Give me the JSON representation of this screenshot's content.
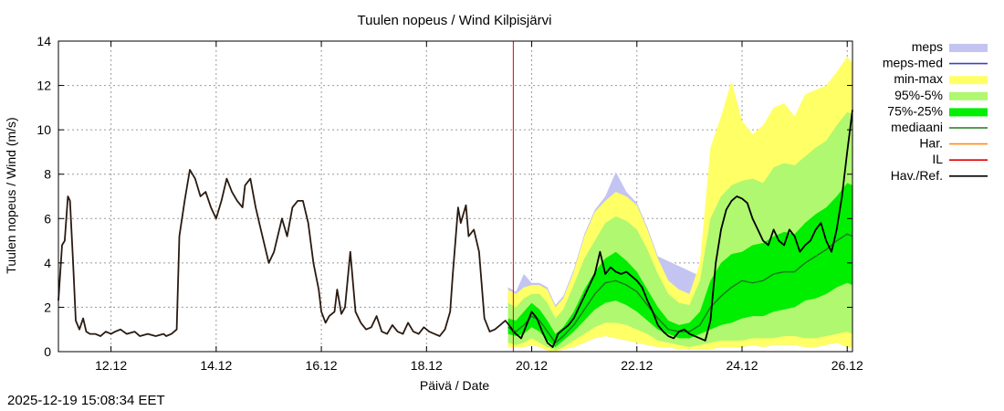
{
  "chart_data": {
    "type": "line",
    "title": "Tuulen nopeus / Wind  Kilpisjärvi",
    "xlabel": "Päivä / Date",
    "ylabel": "Tuulen nopeus / Wind (m/s)",
    "xlim": [
      11,
      26.1
    ],
    "ylim": [
      0,
      14
    ],
    "grid": true,
    "yticks": [
      0,
      2,
      4,
      6,
      8,
      10,
      12,
      14
    ],
    "xticks": [
      {
        "value": 12,
        "label": "12.12"
      },
      {
        "value": 14,
        "label": "14.12"
      },
      {
        "value": 16,
        "label": "16.12"
      },
      {
        "value": 18,
        "label": "18.12"
      },
      {
        "value": 20,
        "label": "20.12"
      },
      {
        "value": 22,
        "label": "22.12"
      },
      {
        "value": 24,
        "label": "24.12"
      },
      {
        "value": 26,
        "label": "26.12"
      }
    ],
    "forecast_start": 19.65,
    "legend": [
      {
        "label": "meps",
        "color": "#c4c4f2",
        "kind": "box"
      },
      {
        "label": "meps-med",
        "color": "#4040c0",
        "kind": "line"
      },
      {
        "label": "min-max",
        "color": "#ffff66",
        "kind": "box"
      },
      {
        "label": "95%-5%",
        "color": "#b0f870",
        "kind": "box"
      },
      {
        "label": "75%-25%",
        "color": "#00ee00",
        "kind": "box"
      },
      {
        "label": "mediaani",
        "color": "#1e7a1e",
        "kind": "line"
      },
      {
        "label": "Har.",
        "color": "#ff8c1a",
        "kind": "line"
      },
      {
        "label": "IL",
        "color": "#e00000",
        "kind": "line"
      },
      {
        "label": "Hav./Ref.",
        "color": "#000000",
        "kind": "line"
      }
    ],
    "series": [
      {
        "name": "Hav./Ref.",
        "x": [
          11.0,
          11.07,
          11.12,
          11.18,
          11.22,
          11.28,
          11.33,
          11.4,
          11.47,
          11.53,
          11.6,
          11.7,
          11.8,
          11.9,
          12.0,
          12.08,
          12.18,
          12.3,
          12.45,
          12.55,
          12.7,
          12.85,
          13.0,
          13.05,
          13.15,
          13.25,
          13.3,
          13.4,
          13.5,
          13.6,
          13.7,
          13.8,
          13.9,
          14.0,
          14.1,
          14.2,
          14.3,
          14.4,
          14.5,
          14.55,
          14.65,
          14.75,
          14.85,
          15.0,
          15.1,
          15.2,
          15.25,
          15.35,
          15.45,
          15.55,
          15.65,
          15.75,
          15.85,
          15.95,
          16.0,
          16.08,
          16.15,
          16.25,
          16.3,
          16.38,
          16.45,
          16.55,
          16.65,
          16.75,
          16.85,
          16.95,
          17.05,
          17.15,
          17.25,
          17.35,
          17.45,
          17.55,
          17.65,
          17.75,
          17.85,
          17.95,
          18.05,
          18.15,
          18.25,
          18.35,
          18.45,
          18.5,
          18.6,
          18.65,
          18.75,
          18.8,
          18.9,
          19.0,
          19.1,
          19.2,
          19.3,
          19.4,
          19.5,
          19.6,
          19.65,
          19.7,
          19.8,
          19.9,
          20.0,
          20.1,
          20.2,
          20.3,
          20.4,
          20.5,
          20.6,
          20.7,
          20.8,
          20.9,
          21.0,
          21.1,
          21.2,
          21.3,
          21.4,
          21.5,
          21.6,
          21.7,
          21.8,
          21.9,
          22.0,
          22.1,
          22.2,
          22.3,
          22.4,
          22.5,
          22.6,
          22.7,
          22.8,
          22.9,
          23.0,
          23.1,
          23.2,
          23.3,
          23.4,
          23.5,
          23.6,
          23.7,
          23.8,
          23.9,
          24.0,
          24.1,
          24.2,
          24.3,
          24.4,
          24.5,
          24.6,
          24.7,
          24.8,
          24.9,
          25.0,
          25.1,
          25.2,
          25.3,
          25.4,
          25.5,
          25.6,
          25.7,
          25.8,
          25.9,
          26.0,
          26.1
        ],
        "y": [
          2.3,
          4.8,
          5.0,
          7.0,
          6.8,
          4.0,
          1.4,
          1.0,
          1.5,
          0.9,
          0.8,
          0.8,
          0.7,
          0.9,
          0.8,
          0.9,
          1.0,
          0.8,
          0.9,
          0.7,
          0.8,
          0.7,
          0.8,
          0.7,
          0.8,
          1.0,
          5.2,
          6.8,
          8.2,
          7.8,
          7.0,
          7.2,
          6.5,
          6.0,
          6.8,
          7.8,
          7.2,
          6.8,
          6.5,
          7.5,
          7.8,
          6.5,
          5.5,
          4.0,
          4.5,
          5.5,
          6.0,
          5.2,
          6.5,
          6.8,
          6.8,
          5.8,
          4.0,
          2.8,
          1.8,
          1.3,
          1.6,
          1.8,
          2.8,
          1.7,
          2.0,
          4.5,
          1.8,
          1.3,
          1.0,
          1.1,
          1.6,
          0.9,
          0.8,
          1.2,
          0.9,
          0.8,
          1.3,
          0.9,
          0.8,
          1.1,
          0.9,
          0.8,
          0.7,
          1.0,
          1.8,
          3.5,
          6.5,
          5.8,
          6.6,
          5.2,
          5.5,
          4.5,
          1.5,
          0.9,
          1.0,
          1.2,
          1.4,
          1.1,
          0.9,
          0.8,
          0.6,
          1.2,
          1.8,
          1.5,
          0.9,
          0.4,
          0.2,
          0.8,
          1.0,
          1.2,
          1.5,
          2.0,
          2.5,
          3.0,
          3.5,
          4.5,
          3.5,
          3.8,
          3.6,
          3.5,
          3.6,
          3.4,
          3.2,
          2.9,
          2.3,
          1.8,
          1.2,
          0.9,
          0.7,
          0.6,
          0.9,
          1.0,
          0.8,
          0.7,
          0.6,
          0.5,
          1.4,
          4.0,
          5.5,
          6.4,
          6.8,
          7.0,
          6.9,
          6.7,
          6.0,
          5.5,
          5.0,
          4.8,
          5.5,
          5.0,
          4.8,
          5.5,
          5.2,
          4.5,
          4.8,
          5.0,
          5.5,
          5.8,
          5.0,
          4.5,
          5.5,
          7.0,
          9.0,
          10.9
        ]
      },
      {
        "name": "mediaani",
        "x": [
          19.55,
          19.7,
          19.85,
          20.0,
          20.15,
          20.3,
          20.45,
          20.6,
          20.8,
          21.0,
          21.2,
          21.4,
          21.6,
          21.8,
          22.0,
          22.2,
          22.4,
          22.6,
          22.8,
          23.0,
          23.2,
          23.4,
          23.6,
          23.8,
          24.0,
          24.2,
          24.4,
          24.6,
          24.8,
          25.0,
          25.2,
          25.4,
          25.6,
          25.8,
          26.0,
          26.1
        ],
        "y": [
          1.1,
          0.9,
          1.2,
          1.6,
          1.4,
          0.9,
          0.4,
          0.7,
          1.2,
          1.9,
          2.6,
          3.1,
          3.2,
          3.0,
          2.7,
          2.1,
          1.5,
          1.0,
          0.9,
          0.9,
          1.2,
          2.0,
          2.5,
          2.9,
          3.2,
          3.1,
          3.2,
          3.5,
          3.6,
          3.6,
          4.0,
          4.3,
          4.6,
          5.0,
          5.3,
          5.2
        ]
      },
      {
        "name": "q25",
        "x": [
          19.55,
          19.7,
          19.85,
          20.0,
          20.15,
          20.3,
          20.45,
          20.6,
          20.8,
          21.0,
          21.2,
          21.4,
          21.6,
          21.8,
          22.0,
          22.2,
          22.4,
          22.6,
          22.8,
          23.0,
          23.2,
          23.4,
          23.6,
          23.8,
          24.0,
          24.2,
          24.4,
          24.6,
          24.8,
          25.0,
          25.2,
          25.4,
          25.6,
          25.8,
          26.0,
          26.1
        ],
        "y": [
          0.8,
          0.7,
          0.8,
          1.1,
          0.9,
          0.5,
          0.2,
          0.5,
          0.9,
          1.4,
          1.9,
          2.2,
          2.3,
          2.1,
          1.8,
          1.4,
          1.0,
          0.8,
          0.6,
          0.6,
          0.8,
          1.0,
          1.2,
          1.3,
          1.5,
          1.6,
          1.6,
          1.8,
          1.9,
          2.0,
          2.3,
          2.4,
          2.6,
          2.9,
          3.1,
          3.0
        ]
      },
      {
        "name": "q75",
        "x": [
          19.55,
          19.7,
          19.85,
          20.0,
          20.15,
          20.3,
          20.45,
          20.6,
          20.8,
          21.0,
          21.2,
          21.4,
          21.6,
          21.8,
          22.0,
          22.2,
          22.4,
          22.6,
          22.8,
          23.0,
          23.2,
          23.4,
          23.6,
          23.8,
          24.0,
          24.2,
          24.4,
          24.6,
          24.8,
          25.0,
          25.2,
          25.4,
          25.6,
          25.8,
          26.0,
          26.1
        ],
        "y": [
          1.5,
          1.4,
          1.8,
          2.2,
          1.9,
          1.4,
          0.8,
          1.1,
          1.8,
          2.8,
          3.6,
          4.2,
          4.5,
          4.1,
          3.6,
          2.8,
          2.0,
          1.4,
          1.2,
          1.3,
          1.8,
          3.2,
          4.0,
          4.4,
          4.5,
          4.8,
          4.9,
          5.2,
          5.4,
          5.3,
          5.8,
          6.2,
          6.5,
          7.0,
          7.6,
          7.5
        ]
      },
      {
        "name": "q5",
        "x": [
          19.55,
          19.7,
          19.85,
          20.0,
          20.15,
          20.3,
          20.45,
          20.6,
          20.8,
          21.0,
          21.2,
          21.4,
          21.6,
          21.8,
          22.0,
          22.2,
          22.4,
          22.6,
          22.8,
          23.0,
          23.2,
          23.4,
          23.6,
          23.8,
          24.0,
          24.2,
          24.4,
          24.6,
          24.8,
          25.0,
          25.2,
          25.4,
          25.6,
          25.8,
          26.0,
          26.1
        ],
        "y": [
          0.4,
          0.3,
          0.4,
          0.6,
          0.4,
          0.2,
          0.05,
          0.2,
          0.5,
          0.8,
          1.1,
          1.3,
          1.3,
          1.2,
          1.0,
          0.8,
          0.5,
          0.4,
          0.3,
          0.2,
          0.3,
          0.4,
          0.5,
          0.5,
          0.5,
          0.6,
          0.6,
          0.6,
          0.7,
          0.7,
          0.6,
          0.6,
          0.7,
          0.8,
          0.9,
          0.8
        ]
      },
      {
        "name": "q95",
        "x": [
          19.55,
          19.7,
          19.85,
          20.0,
          20.15,
          20.3,
          20.45,
          20.6,
          20.8,
          21.0,
          21.2,
          21.4,
          21.6,
          21.8,
          22.0,
          22.2,
          22.4,
          22.6,
          22.8,
          23.0,
          23.2,
          23.4,
          23.6,
          23.8,
          24.0,
          24.2,
          24.4,
          24.6,
          24.8,
          25.0,
          25.2,
          25.4,
          25.6,
          25.8,
          26.0,
          26.1
        ],
        "y": [
          2.2,
          2.0,
          2.4,
          2.6,
          2.6,
          2.2,
          1.5,
          1.9,
          3.0,
          4.2,
          5.0,
          5.8,
          6.1,
          5.9,
          5.5,
          4.6,
          3.5,
          2.6,
          2.2,
          2.1,
          3.2,
          6.0,
          7.0,
          7.5,
          7.7,
          7.8,
          7.6,
          8.3,
          8.5,
          8.4,
          8.8,
          9.2,
          9.5,
          10.2,
          10.8,
          10.7
        ]
      },
      {
        "name": "min",
        "x": [
          19.55,
          19.7,
          19.85,
          20.0,
          20.15,
          20.3,
          20.45,
          20.6,
          20.8,
          21.0,
          21.2,
          21.4,
          21.6,
          21.8,
          22.0,
          22.2,
          22.4,
          22.6,
          22.8,
          23.0,
          23.2,
          23.4,
          23.6,
          23.8,
          24.0,
          24.2,
          24.4,
          24.6,
          24.8,
          25.0,
          25.2,
          25.4,
          25.6,
          25.8,
          26.0,
          26.1
        ],
        "y": [
          0.2,
          0.2,
          0.2,
          0.3,
          0.2,
          0.05,
          0.0,
          0.1,
          0.2,
          0.4,
          0.6,
          0.7,
          0.6,
          0.5,
          0.4,
          0.3,
          0.2,
          0.2,
          0.1,
          0.1,
          0.1,
          0.1,
          0.2,
          0.2,
          0.2,
          0.3,
          0.2,
          0.3,
          0.3,
          0.3,
          0.2,
          0.2,
          0.3,
          0.4,
          0.2,
          0.2
        ]
      },
      {
        "name": "max",
        "x": [
          19.55,
          19.7,
          19.85,
          20.0,
          20.15,
          20.3,
          20.45,
          20.6,
          20.8,
          21.0,
          21.2,
          21.4,
          21.6,
          21.8,
          22.0,
          22.2,
          22.4,
          22.6,
          22.8,
          23.0,
          23.2,
          23.4,
          23.6,
          23.8,
          24.0,
          24.2,
          24.4,
          24.6,
          24.8,
          25.0,
          25.2,
          25.4,
          25.6,
          25.8,
          26.0,
          26.1
        ],
        "y": [
          2.8,
          2.6,
          2.9,
          3.0,
          3.0,
          2.8,
          2.0,
          2.4,
          3.6,
          5.2,
          6.3,
          6.8,
          7.2,
          7.0,
          6.6,
          5.5,
          4.2,
          3.2,
          2.8,
          2.6,
          4.0,
          9.2,
          10.6,
          12.2,
          10.4,
          9.8,
          10.2,
          11.0,
          11.2,
          10.6,
          11.6,
          11.8,
          12.0,
          12.6,
          13.3,
          13.0
        ]
      },
      {
        "name": "meps-max",
        "x": [
          19.55,
          19.7,
          19.85,
          20.0,
          20.15,
          20.3,
          20.45,
          20.6,
          20.8,
          21.0,
          21.2,
          21.4,
          21.6,
          21.8,
          22.0,
          22.2,
          22.4
        ],
        "y": [
          2.9,
          2.7,
          3.5,
          3.1,
          3.1,
          2.9,
          2.1,
          2.5,
          3.7,
          5.3,
          6.4,
          7.0,
          8.1,
          7.2,
          6.7,
          5.6,
          4.3
        ]
      }
    ]
  },
  "footer": {
    "timestamp": "2025-12-19 15:08:34 EET"
  }
}
